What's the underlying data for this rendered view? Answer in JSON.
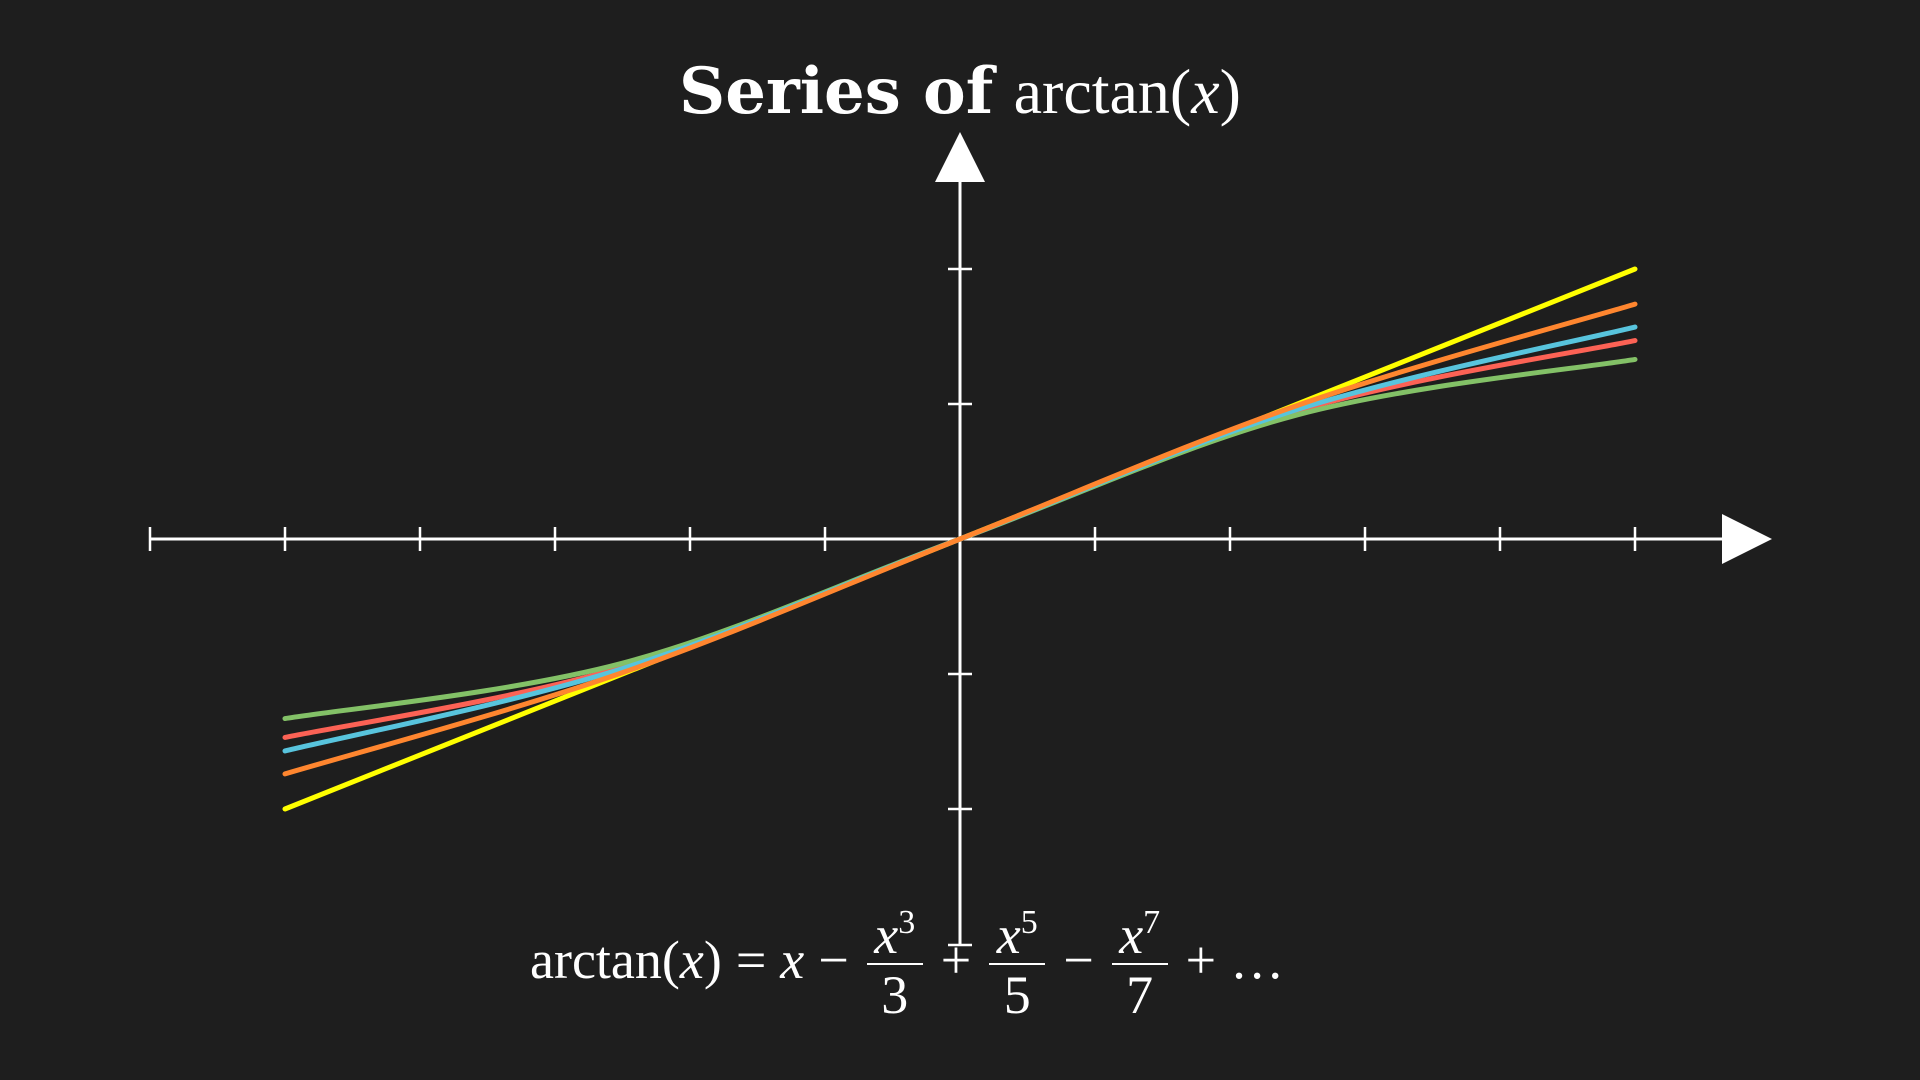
{
  "title": {
    "bold_text": "Series of",
    "math_func": "arctan",
    "math_var": "x"
  },
  "formula": {
    "lhs_func": "arctan",
    "lhs_var": "x",
    "equals": "=",
    "t1": "x",
    "op1": "−",
    "t2_num_var": "x",
    "t2_num_exp": "3",
    "t2_den": "3",
    "op2": "+",
    "t3_num_var": "x",
    "t3_num_exp": "5",
    "t3_den": "5",
    "op3": "−",
    "t4_num_var": "x",
    "t4_num_exp": "7",
    "t4_den": "7",
    "op4": "+",
    "ellipsis": "…"
  },
  "chart_data": {
    "type": "line",
    "title": "Series of arctan(x)",
    "xlim": [
      -6,
      6
    ],
    "ylim": [
      -3,
      3
    ],
    "x_ticks": [
      -6,
      -5,
      -4,
      -3,
      -2,
      -1,
      1,
      2,
      3,
      4,
      5
    ],
    "y_ticks": [
      -2,
      -1,
      1,
      2
    ],
    "x_domain": [
      -5,
      5
    ],
    "grid": false,
    "legend": "none",
    "series": [
      {
        "color": "#ffff00",
        "terms": 1,
        "x": [
          -5,
          0,
          5
        ],
        "y": [
          -2.0,
          0,
          2.0
        ]
      },
      {
        "color": "#fc6255",
        "terms": 2,
        "x": [
          -5,
          -2.5,
          0,
          2.5,
          5
        ],
        "y": [
          -1.47,
          -0.95,
          0,
          0.95,
          1.47
        ]
      },
      {
        "color": "#83c167",
        "terms": 3,
        "x": [
          -5,
          -2.5,
          0,
          2.5,
          5
        ],
        "y": [
          -1.33,
          -0.92,
          0,
          0.92,
          1.33
        ]
      },
      {
        "color": "#58c4dd",
        "terms": 4,
        "x": [
          -5,
          -2.5,
          0,
          2.5,
          5
        ],
        "y": [
          -1.57,
          -0.96,
          0,
          0.96,
          1.57
        ]
      },
      {
        "color": "#ff862f",
        "terms": 5,
        "x": [
          -5,
          -2.5,
          0,
          2.5,
          5
        ],
        "y": [
          -1.74,
          -0.99,
          0,
          0.99,
          1.74
        ]
      }
    ]
  }
}
